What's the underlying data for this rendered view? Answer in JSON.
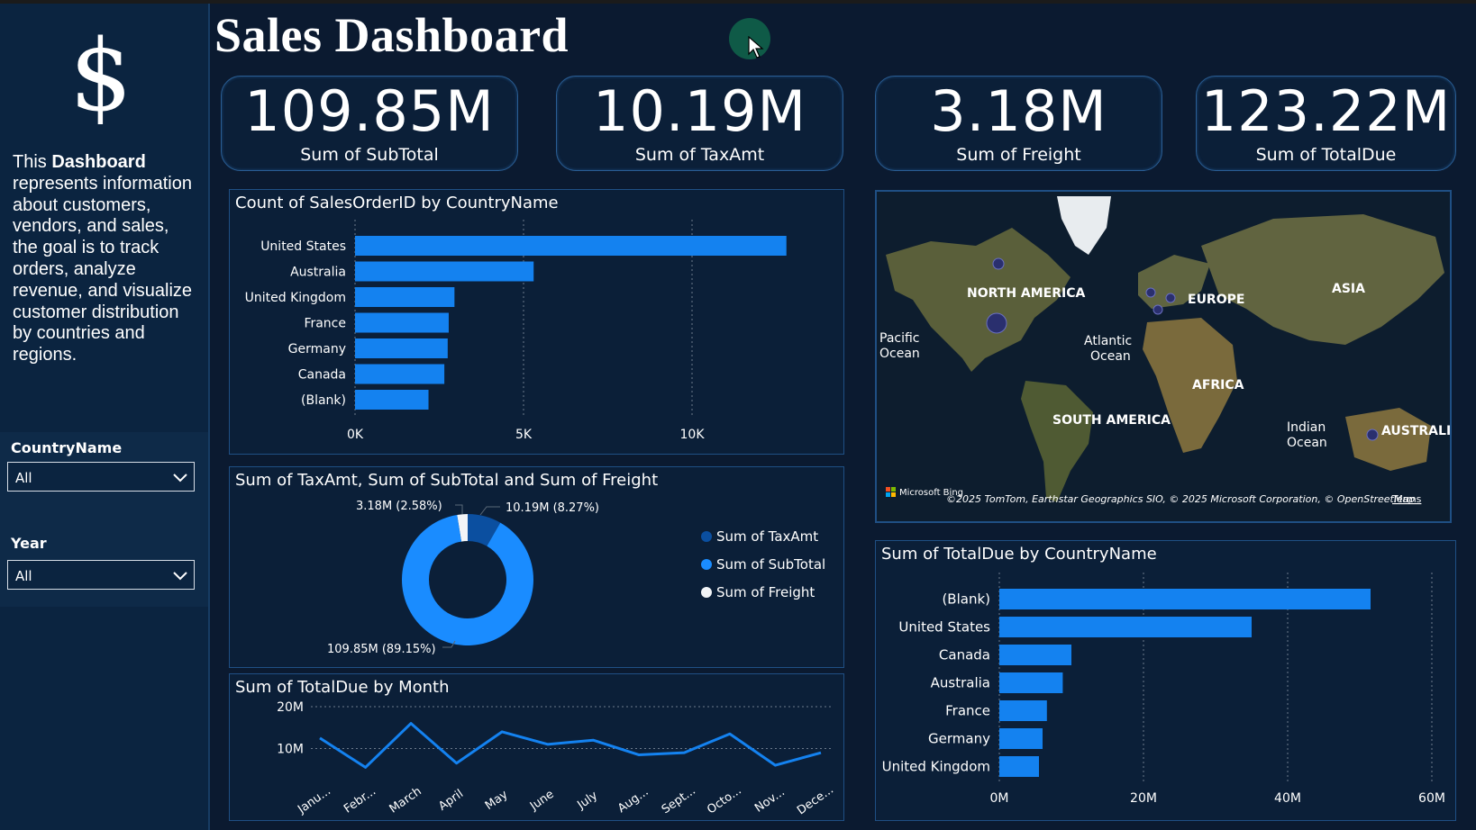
{
  "sidebar": {
    "logo_symbol": "$",
    "description_prefix": "This ",
    "description_bold": "Dashboard",
    "description_rest": " represents information about customers, vendors, and sales, the goal is to track orders, analyze revenue, and visualize customer distribution by countries and regions.",
    "filters": [
      {
        "label": "CountryName",
        "value": "All"
      },
      {
        "label": "Year",
        "value": "All"
      }
    ]
  },
  "header": {
    "title": "Sales Dashboard"
  },
  "kpis": [
    {
      "value": "109.85M",
      "label": "Sum of SubTotal"
    },
    {
      "value": "10.19M",
      "label": "Sum of TaxAmt"
    },
    {
      "value": "3.18M",
      "label": "Sum of Freight"
    },
    {
      "value": "123.22M",
      "label": "Sum of TotalDue"
    }
  ],
  "map": {
    "labels": {
      "north_america": "NORTH AMERICA",
      "europe": "EUROPE",
      "asia": "ASIA",
      "pacific_1": "Pacific",
      "pacific_2": "Ocean",
      "atlantic_1": "Atlantic",
      "atlantic_2": "Ocean",
      "africa": "AFRICA",
      "south_america": "SOUTH AMERICA",
      "indian_1": "Indian",
      "indian_2": "Ocean",
      "australia": "AUSTRALIA"
    },
    "attribution": "©2025 TomTom, Earthstar Geographics SIO, © 2025 Microsoft Corporation, © OpenStreetMap",
    "terms": "Terms",
    "ms_logo_text": "Microsoft Bing",
    "colors": {
      "land": "#5a5f3a",
      "ocean": "#0d1d2e",
      "ice": "#e8ecef",
      "bubble": "#2a2f6e"
    }
  },
  "chart_data": [
    {
      "type": "bar",
      "orientation": "horizontal",
      "title": "Count of SalesOrderID by CountryName",
      "categories": [
        "United States",
        "Australia",
        "United Kingdom",
        "France",
        "Germany",
        "Canada",
        "(Blank)"
      ],
      "values": [
        12800,
        5300,
        2950,
        2780,
        2750,
        2650,
        2180
      ],
      "xticks": [
        "0K",
        "5K",
        "10K"
      ],
      "xlim": [
        0,
        14000
      ],
      "color": "#1482f0",
      "grid": "vertical dotted"
    },
    {
      "type": "pie",
      "subtype": "donut",
      "title": "Sum of TaxAmt, Sum of SubTotal and Sum of Freight",
      "slices": [
        {
          "name": "Sum of TaxAmt",
          "value": 10.19,
          "label": "10.19M (8.27%)",
          "color": "#0b4fa0"
        },
        {
          "name": "Sum of SubTotal",
          "value": 109.85,
          "label": "109.85M (89.15%)",
          "color": "#1a8cff"
        },
        {
          "name": "Sum of Freight",
          "value": 3.18,
          "label": "3.18M (2.58%)",
          "color": "#f2f4f7"
        }
      ],
      "legend": "right"
    },
    {
      "type": "line",
      "title": "Sum of TotalDue by Month",
      "categories": [
        "Janu...",
        "Febr...",
        "March",
        "April",
        "May",
        "June",
        "July",
        "Aug...",
        "Sept...",
        "Octo...",
        "Nov...",
        "Dece..."
      ],
      "values": [
        12.5,
        5.5,
        16,
        6.5,
        14,
        11,
        12,
        8.5,
        9,
        13.5,
        6,
        9
      ],
      "yticks": [
        "20M",
        "10M"
      ],
      "ylim": [
        0,
        22
      ],
      "color": "#1482f0",
      "grid": "horizontal dotted"
    },
    {
      "type": "bar",
      "orientation": "horizontal",
      "title": "Sum of TotalDue by CountryName",
      "categories": [
        "(Blank)",
        "United States",
        "Canada",
        "Australia",
        "France",
        "Germany",
        "United Kingdom"
      ],
      "values": [
        51.5,
        35,
        10,
        8.8,
        6.6,
        6,
        5.5
      ],
      "xticks": [
        "0M",
        "20M",
        "40M",
        "60M"
      ],
      "xlim": [
        0,
        60
      ],
      "color": "#1482f0",
      "grid": "vertical dotted"
    }
  ]
}
